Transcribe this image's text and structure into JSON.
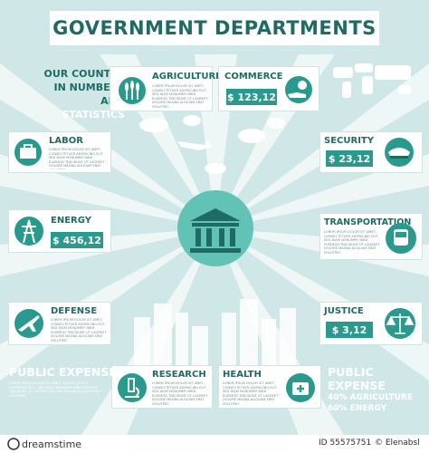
{
  "title": "GOVERNMENT DEPARTMENTS",
  "intro": [
    "OUR COUNTRY",
    "IN NUMBERS",
    "AND",
    "STATISTICS"
  ],
  "lorem": "LOREM IPSUM DOLOR SIT AMET, CONSECTETUER ADIPISCING ELIT, SED DIAM NONUMMY NIBH EUISMOD TINCIDUNT UT LAOREET DOLORE MAGNA ALIQUAM ERAT VOLUTPAT.",
  "departments": {
    "agriculture": {
      "name": "AGRICULTURE"
    },
    "commerce": {
      "name": "COMMERCE",
      "value": "$ 123,12"
    },
    "labor": {
      "name": "LABOR"
    },
    "security": {
      "name": "SECURITY",
      "value": "$   23,12"
    },
    "energy": {
      "name": "ENERGY",
      "value": "$ 456,12"
    },
    "transportation": {
      "name": "TRANSPORTATION"
    },
    "defense": {
      "name": "DEFENSE"
    },
    "justice": {
      "name": "JUSTICE",
      "value": "$  3,12"
    },
    "research": {
      "name": "RESEARCH"
    },
    "health": {
      "name": "HEALTH"
    }
  },
  "public_expense_left": {
    "title": "PUBLIC EXPENSE"
  },
  "public_expense_right": {
    "title": "PUBLIC EXPENSE",
    "line1": "40% AGRICULTURE",
    "line2": "60% ENERGY"
  },
  "footer": {
    "id": "ID 55575751",
    "credit": "© Elenabsl"
  },
  "colors": {
    "teal_dark": "#1e6b63",
    "teal": "#2a9a8e",
    "teal_light": "#63c2b6",
    "background": "#d6ecec"
  }
}
